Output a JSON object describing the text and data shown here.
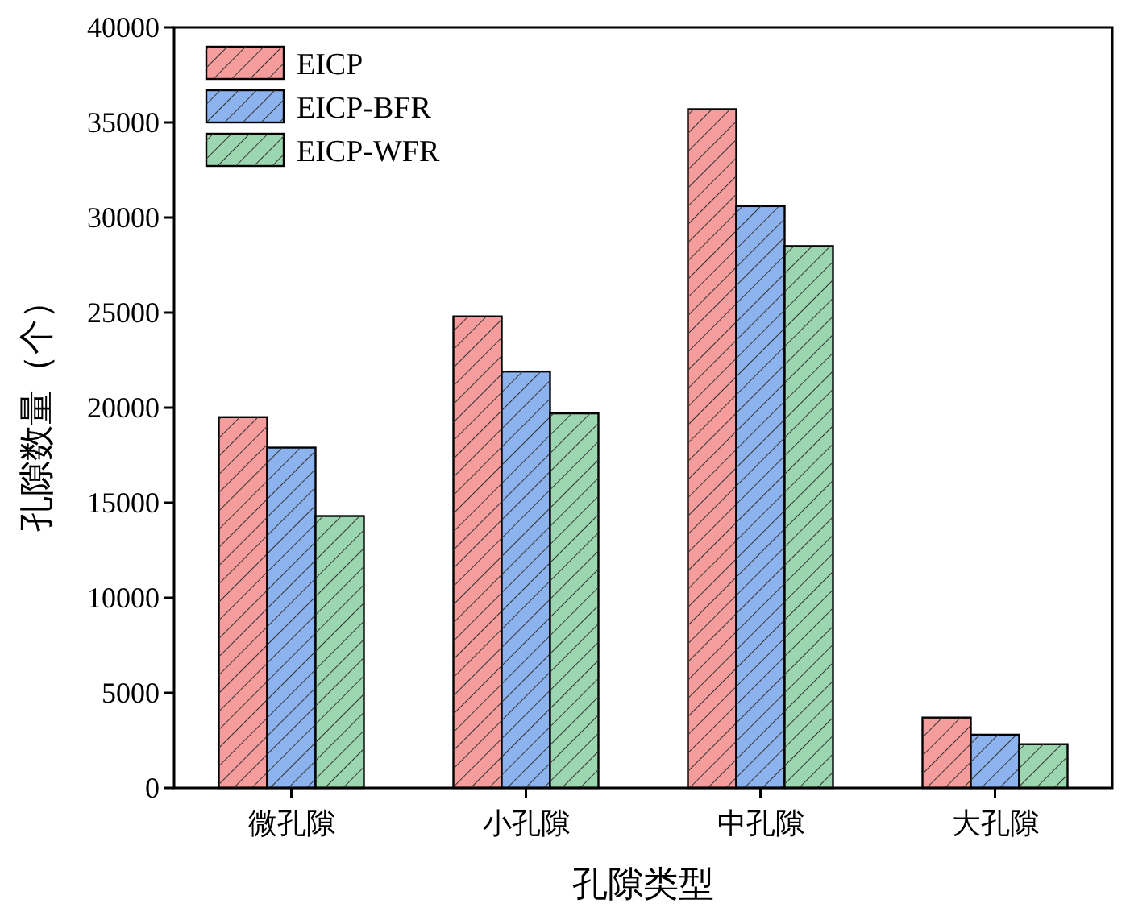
{
  "chart_data": {
    "type": "bar",
    "xlabel": "孔隙类型",
    "ylabel": "孔隙数量（个）",
    "categories": [
      "微孔隙",
      "小孔隙",
      "中孔隙",
      "大孔隙"
    ],
    "series": [
      {
        "name": "EICP",
        "color": "#f59c9c",
        "values": [
          19500,
          24800,
          35700,
          3700
        ]
      },
      {
        "name": "EICP-BFR",
        "color": "#8db3ee",
        "values": [
          17900,
          21900,
          30600,
          2800
        ]
      },
      {
        "name": "EICP-WFR",
        "color": "#9bd6b0",
        "values": [
          14300,
          19700,
          28500,
          2300
        ]
      }
    ],
    "ylim": [
      0,
      40000
    ],
    "yticks": [
      0,
      5000,
      10000,
      15000,
      20000,
      25000,
      30000,
      35000,
      40000
    ],
    "legend": "top left",
    "grid": false
  }
}
